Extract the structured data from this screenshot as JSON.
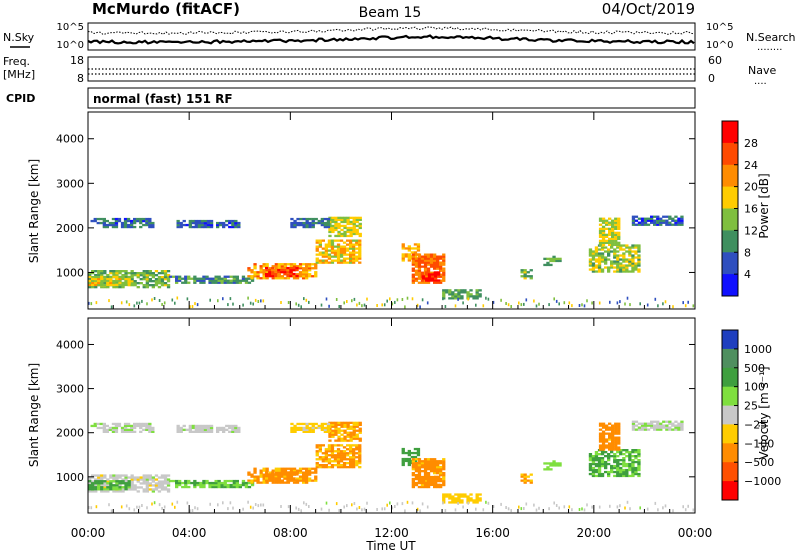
{
  "header": {
    "station": "McMurdo (fitACF)",
    "beam": "Beam 15",
    "date": "04/Oct/2019"
  },
  "top_panel": {
    "left_label": "N.Sky",
    "left_ticks": [
      "10^5",
      "10^0"
    ],
    "right_ticks": [
      "10^5",
      "10^0"
    ],
    "right_label": "N.Search",
    "right_legend": "........"
  },
  "freq_panel": {
    "left_label_1": "Freq.",
    "left_label_2": "[MHz]",
    "left_ticks": [
      "18",
      "8"
    ],
    "right_ticks": [
      "60",
      "0"
    ],
    "right_label": "Nave",
    "right_legend": "...."
  },
  "cpid": {
    "label": "CPID",
    "text": "normal (fast) 151 RF"
  },
  "power_colorbar": {
    "title": "Power [dB]",
    "ticks": [
      "28",
      "24",
      "20",
      "16",
      "12",
      "8",
      "4"
    ],
    "colors": [
      "#ff0000",
      "#ff4a00",
      "#ff8c00",
      "#ffcc00",
      "#7fbf3f",
      "#3f8f5f",
      "#2f4fbf",
      "#1010ff"
    ]
  },
  "velocity_colorbar": {
    "title": "Velocity [m s⁻¹]",
    "ticks": [
      "1000",
      "500",
      "100",
      "25",
      "−25",
      "−100",
      "−500",
      "−1000"
    ],
    "colors": [
      "#1f3fbf",
      "#4f8f5f",
      "#3f9f3f",
      "#7fdf3f",
      "#c8c8c8",
      "#ffcc00",
      "#ff8c00",
      "#ff5000",
      "#ff0000"
    ]
  },
  "axes": {
    "ylabel": "Slant Range [km]",
    "xlabel": "Time UT",
    "yticks": [
      "4000",
      "3000",
      "2000",
      "1000"
    ],
    "xticks": [
      "00:00",
      "04:00",
      "08:00",
      "12:00",
      "16:00",
      "20:00",
      "00:00"
    ]
  },
  "chart_data": {
    "type": "heatmap",
    "x_range_hours": [
      0,
      24
    ],
    "y_range_km": [
      180,
      4600
    ],
    "y_ticks_km": [
      1000,
      2000,
      3000,
      4000
    ],
    "regions": [
      {
        "t0": 0.0,
        "t1": 3.2,
        "r0": 650,
        "r1": 1050,
        "power": 13,
        "vel": 0
      },
      {
        "t0": 0.0,
        "t1": 1.6,
        "r0": 700,
        "r1": 900,
        "power": 17,
        "vel": 120
      },
      {
        "t0": 0.1,
        "t1": 2.6,
        "r0": 2000,
        "r1": 2200,
        "power": 7,
        "vel": 15
      },
      {
        "t0": 3.5,
        "t1": 6.0,
        "r0": 2000,
        "r1": 2150,
        "power": 7,
        "vel": 5
      },
      {
        "t0": 3.2,
        "t1": 6.5,
        "r0": 750,
        "r1": 900,
        "power": 10,
        "vel": 90
      },
      {
        "t0": 6.3,
        "t1": 9.0,
        "r0": 850,
        "r1": 1200,
        "power": 21,
        "vel": -130
      },
      {
        "t0": 7.0,
        "t1": 8.3,
        "r0": 900,
        "r1": 1100,
        "power": 27,
        "vel": -150
      },
      {
        "t0": 9.0,
        "t1": 10.7,
        "r0": 1200,
        "r1": 1700,
        "power": 18,
        "vel": -120
      },
      {
        "t0": 9.5,
        "t1": 10.8,
        "r0": 1800,
        "r1": 2250,
        "power": 16,
        "vel": -110
      },
      {
        "t0": 8.0,
        "t1": 9.5,
        "r0": 2000,
        "r1": 2200,
        "power": 8,
        "vel": -40
      },
      {
        "t0": 12.4,
        "t1": 13.0,
        "r0": 1250,
        "r1": 1650,
        "power": 20,
        "vel": 300
      },
      {
        "t0": 12.8,
        "t1": 14.0,
        "r0": 750,
        "r1": 1400,
        "power": 24,
        "vel": -140
      },
      {
        "t0": 13.2,
        "t1": 13.8,
        "r0": 800,
        "r1": 1000,
        "power": 29,
        "vel": -200
      },
      {
        "t0": 14.0,
        "t1": 15.5,
        "r0": 400,
        "r1": 600,
        "power": 12,
        "vel": -60
      },
      {
        "t0": 17.1,
        "t1": 17.5,
        "r0": 850,
        "r1": 1050,
        "power": 14,
        "vel": -120
      },
      {
        "t0": 18.0,
        "t1": 18.7,
        "r0": 1150,
        "r1": 1350,
        "power": 12,
        "vel": 60
      },
      {
        "t0": 19.8,
        "t1": 21.8,
        "r0": 1000,
        "r1": 1600,
        "power": 15,
        "vel": 110
      },
      {
        "t0": 20.2,
        "t1": 21.0,
        "r0": 1600,
        "r1": 2200,
        "power": 16,
        "vel": -160
      },
      {
        "t0": 21.5,
        "t1": 23.5,
        "r0": 2050,
        "r1": 2250,
        "power": 7,
        "vel": 10
      }
    ]
  }
}
